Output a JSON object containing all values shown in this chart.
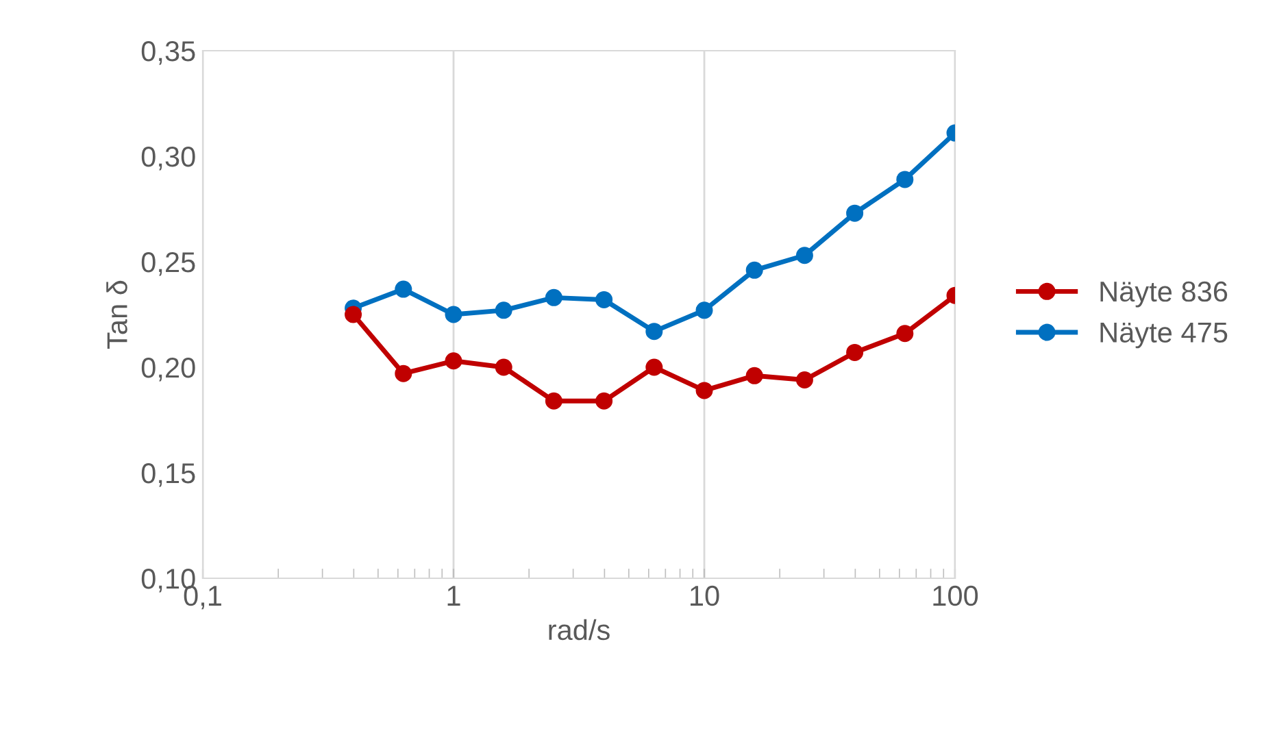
{
  "chart_data": {
    "type": "line",
    "xlabel": "rad/s",
    "ylabel": "Tan δ",
    "log": "x",
    "x": [
      0.398,
      0.631,
      1,
      1.585,
      2.512,
      3.981,
      6.31,
      10,
      15.85,
      25.12,
      39.81,
      63.1,
      100
    ],
    "series": [
      {
        "name": "Näyte 836",
        "color": "#c00000",
        "values": [
          0.225,
          0.197,
          0.203,
          0.2,
          0.184,
          0.184,
          0.2,
          0.189,
          0.196,
          0.194,
          0.207,
          0.216,
          0.234
        ]
      },
      {
        "name": "Näyte 475",
        "color": "#0070c0",
        "values": [
          0.228,
          0.237,
          0.225,
          0.227,
          0.233,
          0.232,
          0.217,
          0.227,
          0.246,
          0.253,
          0.273,
          0.289,
          0.311
        ]
      }
    ],
    "xlim": [
      0.1,
      100
    ],
    "xticks": [
      {
        "value": 0.1,
        "label": "0,1"
      },
      1,
      10,
      100
    ],
    "ylim": [
      0.1,
      0.35
    ],
    "yticks": [
      {
        "value": 0.1,
        "label": "0,10"
      },
      {
        "value": 0.15,
        "label": "0,15"
      },
      {
        "value": 0.2,
        "label": "0,20"
      },
      {
        "value": 0.25,
        "label": "0,25"
      },
      {
        "value": 0.3,
        "label": "0,30"
      },
      {
        "value": 0.35,
        "label": "0,35"
      }
    ],
    "grid": "x",
    "legend": "right",
    "marker": "circle",
    "line_style": "solid"
  }
}
